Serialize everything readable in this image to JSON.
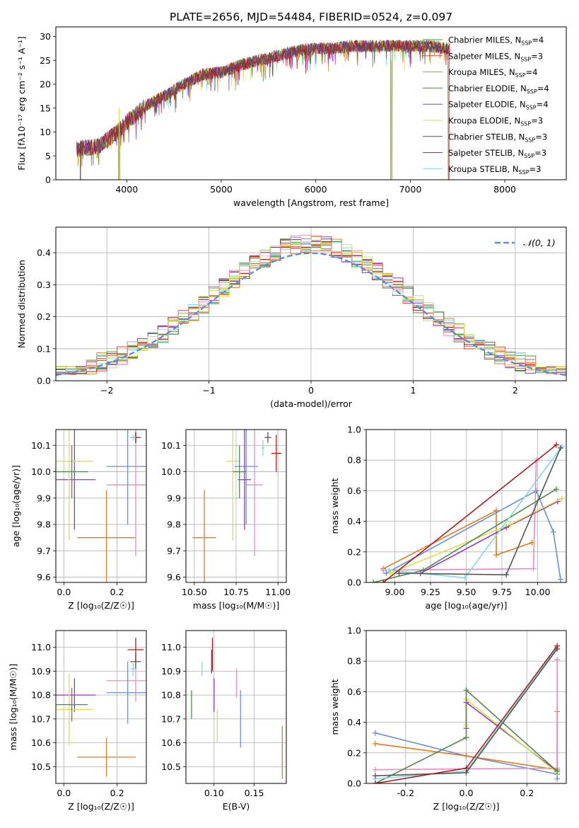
{
  "title": "PLATE=2656, MJD=54484, FIBERID=0524, z=0.097",
  "palette": {
    "Chabrier MILES": "#2ca02c",
    "Salpeter MILES": "#e6443a",
    "Kroupa MILES": "#d18b1f",
    "Chabrier ELODIE": "#4f8a4f",
    "Salpeter ELODIE": "#9b30c8",
    "Kroupa ELODIE": "#d9e04a",
    "Chabrier STELIB": "#555555",
    "Salpeter STELIB": "#b01c1c",
    "Kroupa STELIB": "#7fdbe0",
    "normal_curve": "#5b8fd9",
    "extra_orange": "#e07b20",
    "extra_pink": "#e98bbf",
    "extra_blue": "#6a8fd8",
    "extra_lime": "#c8ea50"
  },
  "chart_data": [
    {
      "id": "spectrum",
      "type": "line",
      "title": "PLATE=2656, MJD=54484, FIBERID=0524, z=0.097",
      "xlabel": "wavelength [Angstrom, rest frame]",
      "ylabel": "Flux [fλ10⁻¹⁷ erg cm⁻² s⁻¹ A⁻¹]",
      "xlim": [
        3250,
        8650
      ],
      "ylim": [
        0,
        32
      ],
      "xticks": [
        4000,
        5000,
        6000,
        7000,
        8000
      ],
      "yticks": [
        0,
        5,
        10,
        15,
        20,
        25,
        30
      ],
      "grid": false,
      "legend_position": "top-right",
      "legend": [
        {
          "label": "Chabrier MILES, N",
          "sub": "SSP",
          "suffix": "=4"
        },
        {
          "label": "Salpeter MILES, N",
          "sub": "SSP",
          "suffix": "=3"
        },
        {
          "label": "Kroupa MILES, N",
          "sub": "SSP",
          "suffix": "=4"
        },
        {
          "label": "Chabrier ELODIE, N",
          "sub": "SSP",
          "suffix": "=4"
        },
        {
          "label": "Salpeter ELODIE, N",
          "sub": "SSP",
          "suffix": "=4"
        },
        {
          "label": "Kroupa ELODIE, N",
          "sub": "SSP",
          "suffix": "=3"
        },
        {
          "label": "Chabrier STELIB, N",
          "sub": "SSP",
          "suffix": "=3"
        },
        {
          "label": "Salpeter STELIB, N",
          "sub": "SSP",
          "suffix": "=3"
        },
        {
          "label": "Kroupa STELIB, N",
          "sub": "SSP",
          "suffix": "=3"
        }
      ],
      "continuum_x": [
        3500,
        3700,
        3900,
        4000,
        4200,
        4400,
        4600,
        4800,
        5000,
        5200,
        5400,
        5600,
        5800,
        6000,
        6200,
        6400,
        6600,
        6800,
        7000,
        7200,
        7400
      ],
      "continuum_y": [
        6.5,
        7.0,
        10.0,
        12.0,
        15.5,
        17.5,
        20.0,
        22.0,
        22.5,
        24.0,
        25.0,
        26.0,
        27.0,
        27.5,
        27.5,
        28.0,
        28.0,
        28.0,
        28.0,
        28.0,
        27.5
      ],
      "dips": [
        {
          "x": 3920,
          "y": 0
        },
        {
          "x": 6800,
          "y": 0
        },
        {
          "x": 7410,
          "y": 0
        },
        {
          "x": 5890,
          "y": 23
        },
        {
          "x": 4860,
          "y": 18
        }
      ]
    },
    {
      "id": "residuals",
      "type": "line",
      "xlabel": "(data-model)/error",
      "ylabel": "Normed distribution",
      "xlim": [
        -2.5,
        2.5
      ],
      "ylim": [
        0,
        0.48
      ],
      "xticks": [
        -2,
        -1,
        0,
        1,
        2
      ],
      "yticks": [
        0.0,
        0.1,
        0.2,
        0.3,
        0.4
      ],
      "grid": true,
      "legend_position": "top-right",
      "legend_label": "𝒩(0, 1)",
      "normal": {
        "mean": 0,
        "sigma": 1
      },
      "bin_width": 0.1
    },
    {
      "id": "age-vs-Z",
      "type": "scatter",
      "xlabel": "Z [log₁₀(Z/Z☉)]",
      "ylabel": "age  [log₁₀(age/yr)]",
      "xlim": [
        -0.03,
        0.31
      ],
      "ylim": [
        9.58,
        10.16
      ],
      "xticks": [
        0.0,
        0.2
      ],
      "yticks": [
        9.6,
        9.7,
        9.8,
        9.9,
        10.0,
        10.1
      ],
      "grid": true,
      "points": [
        {
          "x": 0.16,
          "y": 9.75,
          "xerr": 0.11,
          "yerr": 0.18,
          "color": "#e07b20"
        },
        {
          "x": 0.27,
          "y": 9.95,
          "xerr": 0.11,
          "yerr": 0.27,
          "color": "#e98bbf"
        },
        {
          "x": 0.24,
          "y": 10.02,
          "xerr": 0.08,
          "yerr": 0.22,
          "color": "#6a8fd8"
        },
        {
          "x": 0.04,
          "y": 9.97,
          "xerr": 0.08,
          "yerr": 0.19,
          "color": "#9b30c8"
        },
        {
          "x": 0.02,
          "y": 10.04,
          "xerr": 0.09,
          "yerr": 0.3,
          "color": "#d9e04a"
        },
        {
          "x": 0.03,
          "y": 10.0,
          "xerr": 0.06,
          "yerr": 0.1,
          "color": "#4f8a4f"
        },
        {
          "x": 0.27,
          "y": 10.13,
          "xerr": 0.02,
          "yerr": 0.02,
          "color": "#555555"
        },
        {
          "x": 0.27,
          "y": 10.13,
          "xerr": 0.01,
          "yerr": 0.02,
          "color": "#b01c1c"
        },
        {
          "x": 0.26,
          "y": 10.13,
          "xerr": 0.01,
          "yerr": 0.01,
          "color": "#7fdbe0"
        }
      ]
    },
    {
      "id": "age-vs-mass",
      "type": "scatter",
      "xlabel": "mass [log₁₀(M/M☉)]",
      "ylabel": "",
      "xlim": [
        10.45,
        11.05
      ],
      "ylim": [
        9.58,
        10.16
      ],
      "xticks": [
        10.5,
        10.75,
        11.0
      ],
      "yticks": [
        9.6,
        9.7,
        9.8,
        9.9,
        10.0,
        10.1
      ],
      "grid": true,
      "points": [
        {
          "x": 10.56,
          "y": 9.75,
          "xerr": 0.07,
          "yerr": 0.18,
          "color": "#e07b20"
        },
        {
          "x": 10.86,
          "y": 9.95,
          "xerr": 0.05,
          "yerr": 0.27,
          "color": "#e98bbf"
        },
        {
          "x": 10.81,
          "y": 10.02,
          "xerr": 0.07,
          "yerr": 0.22,
          "color": "#6a8fd8"
        },
        {
          "x": 10.8,
          "y": 9.97,
          "xerr": 0.04,
          "yerr": 0.19,
          "color": "#9b30c8"
        },
        {
          "x": 10.73,
          "y": 10.04,
          "xerr": 0.04,
          "yerr": 0.3,
          "color": "#d9e04a"
        },
        {
          "x": 10.77,
          "y": 10.0,
          "xerr": 0.04,
          "yerr": 0.1,
          "color": "#4f8a4f"
        },
        {
          "x": 10.94,
          "y": 10.13,
          "xerr": 0.02,
          "yerr": 0.02,
          "color": "#555555"
        },
        {
          "x": 10.99,
          "y": 10.07,
          "xerr": 0.03,
          "yerr": 0.07,
          "color": "#b01c1c"
        },
        {
          "x": 10.91,
          "y": 10.09,
          "xerr": 0.01,
          "yerr": 0.03,
          "color": "#7fdbe0"
        }
      ]
    },
    {
      "id": "weight-vs-age",
      "type": "line",
      "xlabel": "age  [log₁₀(age/yr)]",
      "ylabel": "mass weight",
      "xlim": [
        8.8,
        10.2
      ],
      "ylim": [
        0,
        1.0
      ],
      "xticks": [
        9.0,
        9.25,
        9.5,
        9.75,
        10.0
      ],
      "yticks": [
        0.0,
        0.2,
        0.4,
        0.6,
        0.8,
        1.0
      ],
      "grid": true,
      "series": [
        {
          "color": "#e07b20",
          "x": [
            8.92,
            9.71,
            9.71,
            9.96
          ],
          "y": [
            0.09,
            0.47,
            0.18,
            0.26
          ]
        },
        {
          "color": "#6a8fd8",
          "x": [
            8.94,
            9.99,
            10.11,
            10.16
          ],
          "y": [
            0.06,
            0.6,
            0.33,
            0.02
          ]
        },
        {
          "color": "#e98bbf",
          "x": [
            8.92,
            9.97,
            9.99
          ],
          "y": [
            0.08,
            0.09,
            0.8
          ]
        },
        {
          "color": "#9b30c8",
          "x": [
            9.18,
            9.78,
            10.14
          ],
          "y": [
            0.06,
            0.36,
            0.53
          ]
        },
        {
          "color": "#d9e04a",
          "x": [
            8.97,
            9.81,
            10.17
          ],
          "y": [
            0.06,
            0.38,
            0.55
          ]
        },
        {
          "color": "#4f8a4f",
          "x": [
            8.85,
            9.2,
            10.13
          ],
          "y": [
            0.0,
            0.08,
            0.61
          ]
        },
        {
          "color": "#7fdbe0",
          "x": [
            8.96,
            9.49,
            10.17
          ],
          "y": [
            0.08,
            0.03,
            0.89
          ]
        },
        {
          "color": "#555555",
          "x": [
            9.03,
            9.78,
            10.16
          ],
          "y": [
            0.06,
            0.05,
            0.88
          ]
        },
        {
          "color": "#b01c1c",
          "x": [
            8.92,
            10.13
          ],
          "y": [
            0.0,
            0.9
          ]
        }
      ]
    },
    {
      "id": "mass-vs-Z",
      "type": "scatter",
      "xlabel": "Z [log₁₀(Z/Z☉)]",
      "ylabel": "mass [log₁₀(M/M☉)]",
      "xlim": [
        -0.03,
        0.31
      ],
      "ylim": [
        10.43,
        11.07
      ],
      "xticks": [
        0.0,
        0.2
      ],
      "yticks": [
        10.5,
        10.6,
        10.7,
        10.8,
        10.9,
        11.0
      ],
      "grid": true,
      "points": [
        {
          "x": 0.16,
          "y": 10.54,
          "xerr": 0.11,
          "yerr": 0.08,
          "color": "#e07b20"
        },
        {
          "x": 0.27,
          "y": 10.86,
          "xerr": 0.11,
          "yerr": 0.09,
          "color": "#e98bbf"
        },
        {
          "x": 0.24,
          "y": 10.81,
          "xerr": 0.08,
          "yerr": 0.13,
          "color": "#6a8fd8"
        },
        {
          "x": 0.04,
          "y": 10.8,
          "xerr": 0.08,
          "yerr": 0.07,
          "color": "#9b30c8"
        },
        {
          "x": 0.02,
          "y": 10.74,
          "xerr": 0.09,
          "yerr": 0.15,
          "color": "#d9e04a"
        },
        {
          "x": 0.03,
          "y": 10.76,
          "xerr": 0.06,
          "yerr": 0.07,
          "color": "#4f8a4f"
        },
        {
          "x": 0.27,
          "y": 10.94,
          "xerr": 0.02,
          "yerr": 0.03,
          "color": "#555555"
        },
        {
          "x": 0.27,
          "y": 10.99,
          "xerr": 0.03,
          "yerr": 0.05,
          "color": "#b01c1c"
        },
        {
          "x": 0.26,
          "y": 10.91,
          "xerr": 0.01,
          "yerr": 0.03,
          "color": "#7fdbe0"
        }
      ]
    },
    {
      "id": "mass-vs-ebv",
      "type": "scatter",
      "xlabel": "E(B-V)",
      "ylabel": "",
      "xlim": [
        0.065,
        0.19
      ],
      "ylim": [
        10.43,
        11.07
      ],
      "xticks": [
        0.1,
        0.15
      ],
      "yticks": [
        10.5,
        10.6,
        10.7,
        10.8,
        10.9,
        11.0
      ],
      "grid": true,
      "points": [
        {
          "x": 0.185,
          "y": 10.56,
          "xerr": 0,
          "yerr": 0.11,
          "color": "#e07b20"
        },
        {
          "x": 0.128,
          "y": 10.85,
          "xerr": 0,
          "yerr": 0.06,
          "color": "#e98bbf"
        },
        {
          "x": 0.133,
          "y": 10.7,
          "xerr": 0,
          "yerr": 0.12,
          "color": "#6a8fd8"
        },
        {
          "x": 0.1,
          "y": 10.8,
          "xerr": 0,
          "yerr": 0.07,
          "color": "#9b30c8"
        },
        {
          "x": 0.104,
          "y": 10.67,
          "xerr": 0,
          "yerr": 0.07,
          "color": "#d9e04a"
        },
        {
          "x": 0.072,
          "y": 10.76,
          "xerr": 0,
          "yerr": 0.06,
          "color": "#4f8a4f"
        },
        {
          "x": 0.097,
          "y": 10.94,
          "xerr": 0,
          "yerr": 0.05,
          "color": "#555555"
        },
        {
          "x": 0.098,
          "y": 10.97,
          "xerr": 0,
          "yerr": 0.07,
          "color": "#b01c1c"
        },
        {
          "x": 0.085,
          "y": 10.91,
          "xerr": 0,
          "yerr": 0.03,
          "color": "#7fdbe0"
        }
      ]
    },
    {
      "id": "weight-vs-Z",
      "type": "line",
      "xlabel": "Z [log₁₀(Z/Z☉)]",
      "ylabel": "mass weight",
      "xlim": [
        -0.33,
        0.33
      ],
      "ylim": [
        0,
        1.0
      ],
      "xticks": [
        -0.2,
        0.0,
        0.2
      ],
      "yticks": [
        0.0,
        0.2,
        0.4,
        0.6,
        0.8,
        1.0
      ],
      "grid": true,
      "series": [
        {
          "color": "#6a8fd8",
          "x": [
            -0.3,
            0.0,
            0.3,
            0.3
          ],
          "y": [
            0.33,
            0.18,
            0.06,
            0.03
          ]
        },
        {
          "color": "#e07b20",
          "x": [
            -0.3,
            0.0,
            0.3,
            0.3
          ],
          "y": [
            0.26,
            0.18,
            0.09,
            0.47
          ]
        },
        {
          "color": "#e98bbf",
          "x": [
            -0.3,
            0.3,
            0.3
          ],
          "y": [
            0.09,
            0.1,
            0.81
          ]
        },
        {
          "color": "#9b30c8",
          "x": [
            0.0,
            0.0,
            0.3
          ],
          "y": [
            0.36,
            0.53,
            0.08
          ]
        },
        {
          "color": "#d9e04a",
          "x": [
            0.0,
            0.0,
            0.3
          ],
          "y": [
            0.38,
            0.55,
            0.07
          ]
        },
        {
          "color": "#4f8a4f",
          "x": [
            -0.3,
            0.0,
            0.0,
            0.3
          ],
          "y": [
            0.0,
            0.3,
            0.61,
            0.08
          ]
        },
        {
          "color": "#7fdbe0",
          "x": [
            -0.3,
            0.0,
            0.3
          ],
          "y": [
            0.03,
            0.08,
            0.89
          ]
        },
        {
          "color": "#555555",
          "x": [
            -0.3,
            0.0,
            0.3
          ],
          "y": [
            0.05,
            0.07,
            0.88
          ]
        },
        {
          "color": "#b01c1c",
          "x": [
            -0.3,
            0.0,
            0.3
          ],
          "y": [
            0.0,
            0.1,
            0.9
          ]
        }
      ]
    }
  ]
}
